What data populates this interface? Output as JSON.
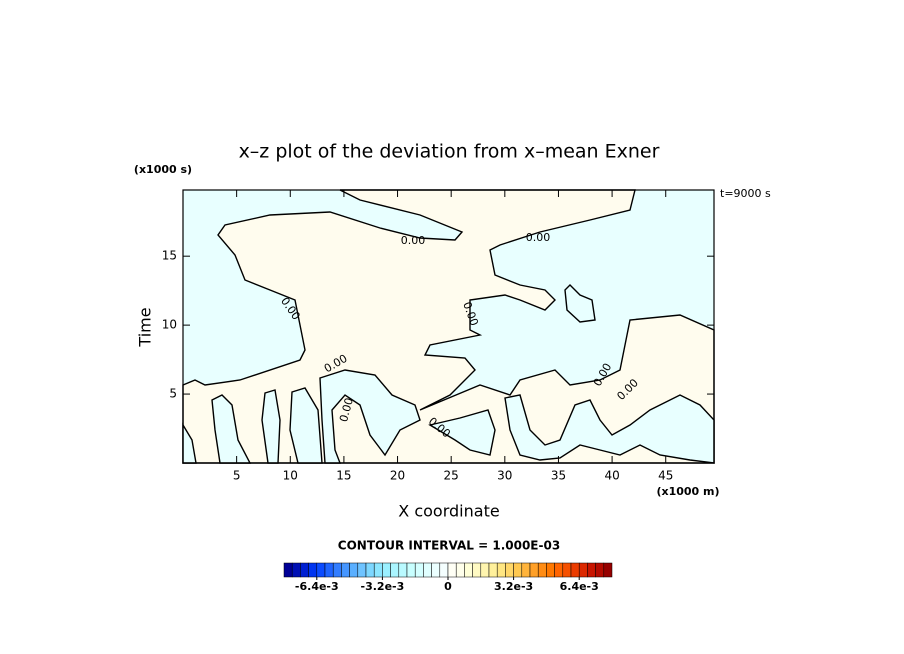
{
  "chart_data": {
    "type": "contour",
    "title": "x–z plot of the deviation from x–mean Exner",
    "x_label": "X coordinate",
    "x_unit": "(x1000 m)",
    "y_label": "Time",
    "y_unit": "(x1000 s)",
    "time_label": "t=9000 s",
    "xlim": [
      0,
      49.5
    ],
    "xticks": [
      5,
      10,
      15,
      20,
      25,
      30,
      35,
      40,
      45
    ],
    "ylim": [
      0,
      19.8
    ],
    "yticks": [
      5,
      10,
      15
    ],
    "contour_labels": [
      "0.00",
      "0.00",
      "0.00",
      "0.00",
      "0.00",
      "0.00",
      "0.00",
      "0.00",
      "0.00"
    ],
    "negative_color": "#e8ffff",
    "positive_color": "#fffcee",
    "line_color": "#000000",
    "colorbar": {
      "title": "CONTOUR INTERVAL = 1.000E-03",
      "lim": [
        -0.008,
        0.008
      ],
      "ticks": [
        {
          "value": -0.0064,
          "label": "-6.4e-3"
        },
        {
          "value": -0.0032,
          "label": "-3.2e-3"
        },
        0,
        {
          "value": 0.0032,
          "label": "3.2e-3"
        },
        {
          "value": 0.0064,
          "label": "6.4e-3"
        }
      ],
      "colors": [
        "#000096",
        "#0010b4",
        "#0020d2",
        "#0035f0",
        "#0a4bff",
        "#1e64ff",
        "#327dff",
        "#4696ff",
        "#5aafff",
        "#6ec3ff",
        "#7dd7ff",
        "#8ce6ff",
        "#9bf0ff",
        "#aaf5ff",
        "#b9faff",
        "#c8ffff",
        "#d4ffff",
        "#e0ffff",
        "#ebffff",
        "#f5ffff",
        "#fffff5",
        "#ffffeb",
        "#ffffd7",
        "#fffac3",
        "#fff5af",
        "#fff09b",
        "#ffe682",
        "#ffd769",
        "#ffc850",
        "#ffb43c",
        "#ffa028",
        "#ff8c14",
        "#ff7800",
        "#ff6400",
        "#f55000",
        "#eb3c00",
        "#dc2800",
        "#c81400",
        "#b40a00",
        "#960000"
      ]
    }
  }
}
